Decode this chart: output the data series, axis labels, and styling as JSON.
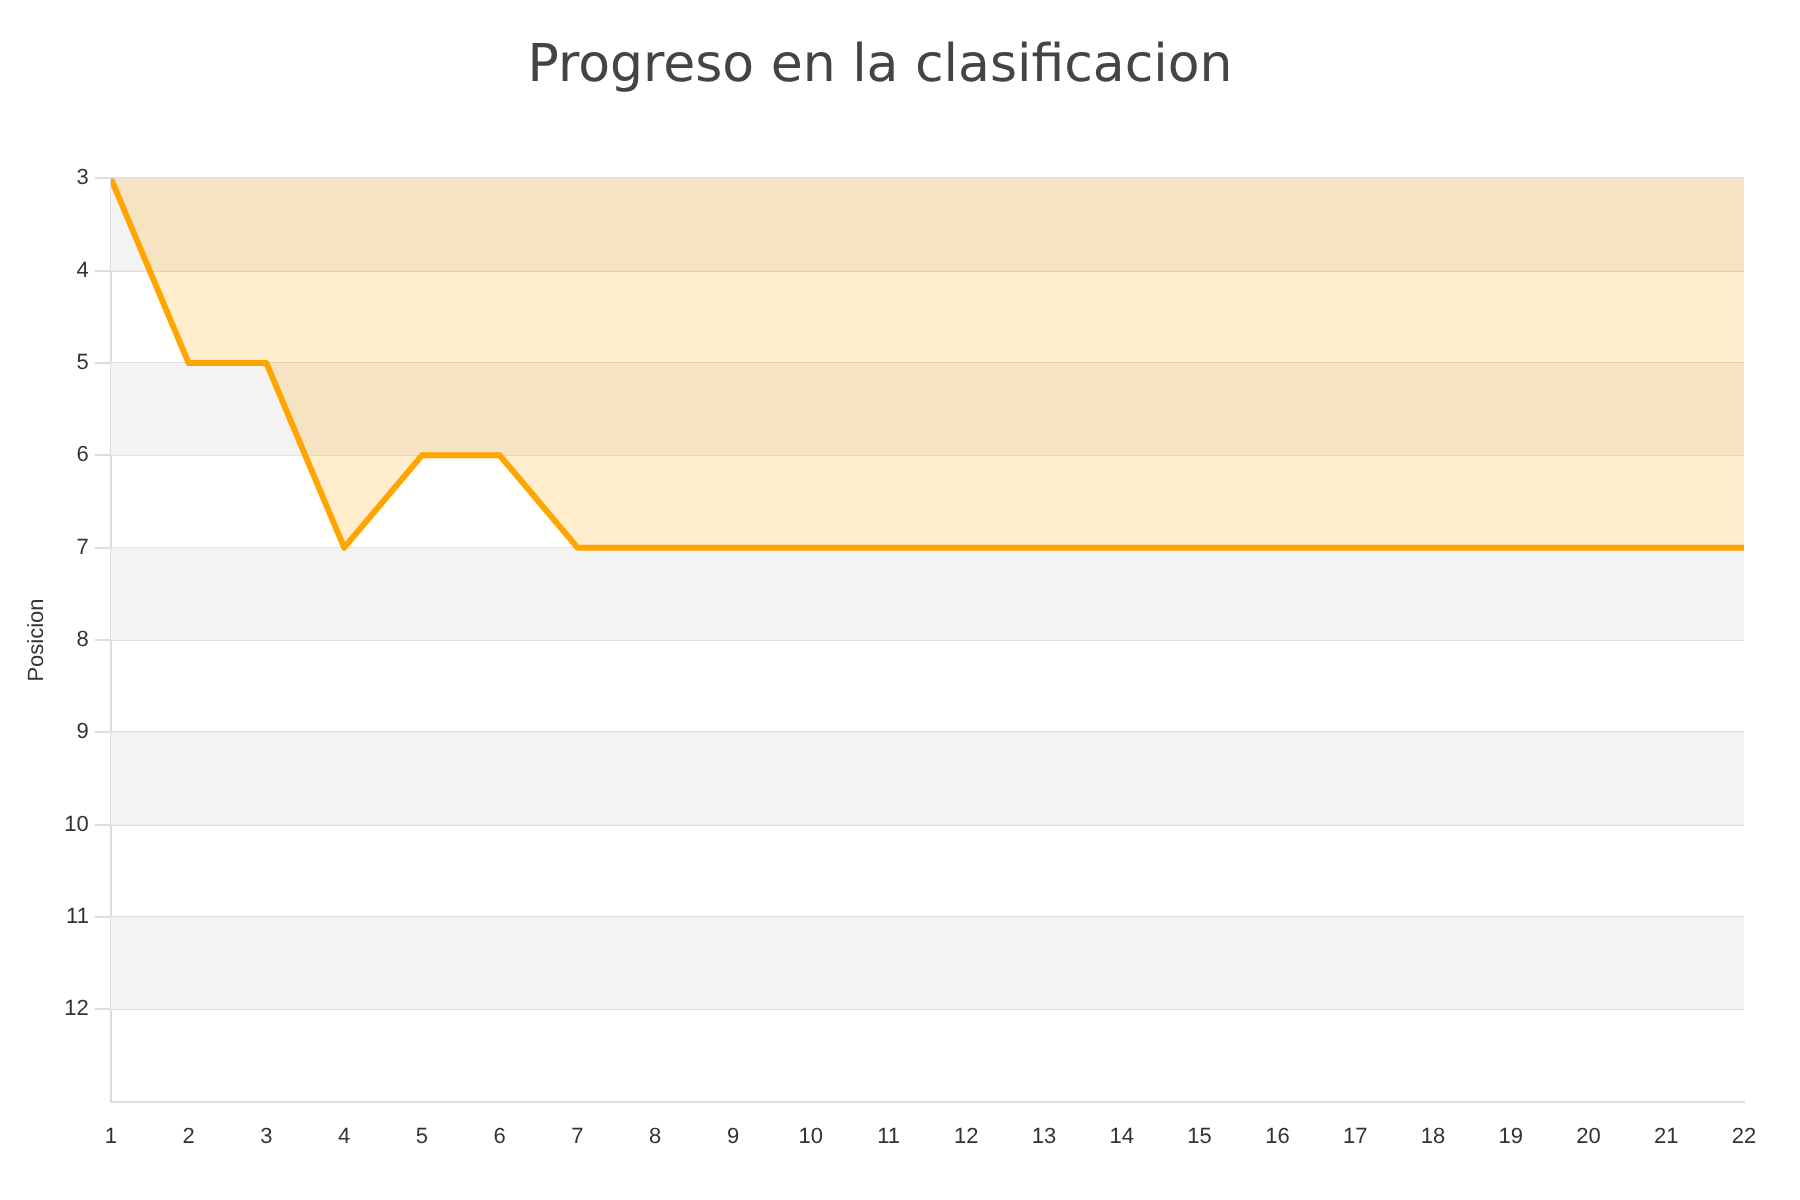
{
  "chart_data": {
    "type": "area",
    "title": "Progreso en la clasificacion",
    "ylabel": "Posicion",
    "x": [
      1,
      2,
      3,
      4,
      5,
      6,
      7,
      8,
      9,
      10,
      11,
      12,
      13,
      14,
      15,
      16,
      17,
      18,
      19,
      20,
      21,
      22
    ],
    "series": [
      {
        "color": "#ffa500",
        "values": [
          3,
          5,
          5,
          7,
          6,
          6,
          7,
          7,
          7,
          7,
          7,
          7,
          7,
          7,
          7,
          7,
          7,
          7,
          7,
          7,
          7,
          7
        ]
      }
    ],
    "xlim": [
      1,
      22
    ],
    "xticks": [
      1,
      2,
      3,
      4,
      5,
      6,
      7,
      8,
      9,
      10,
      11,
      12,
      13,
      14,
      15,
      16,
      17,
      18,
      19,
      20,
      21,
      22
    ],
    "ylim": [
      13,
      3
    ],
    "yticks": [
      3,
      4,
      5,
      6,
      7,
      8,
      9,
      10,
      11,
      12
    ],
    "grid": "y",
    "legend": false
  }
}
